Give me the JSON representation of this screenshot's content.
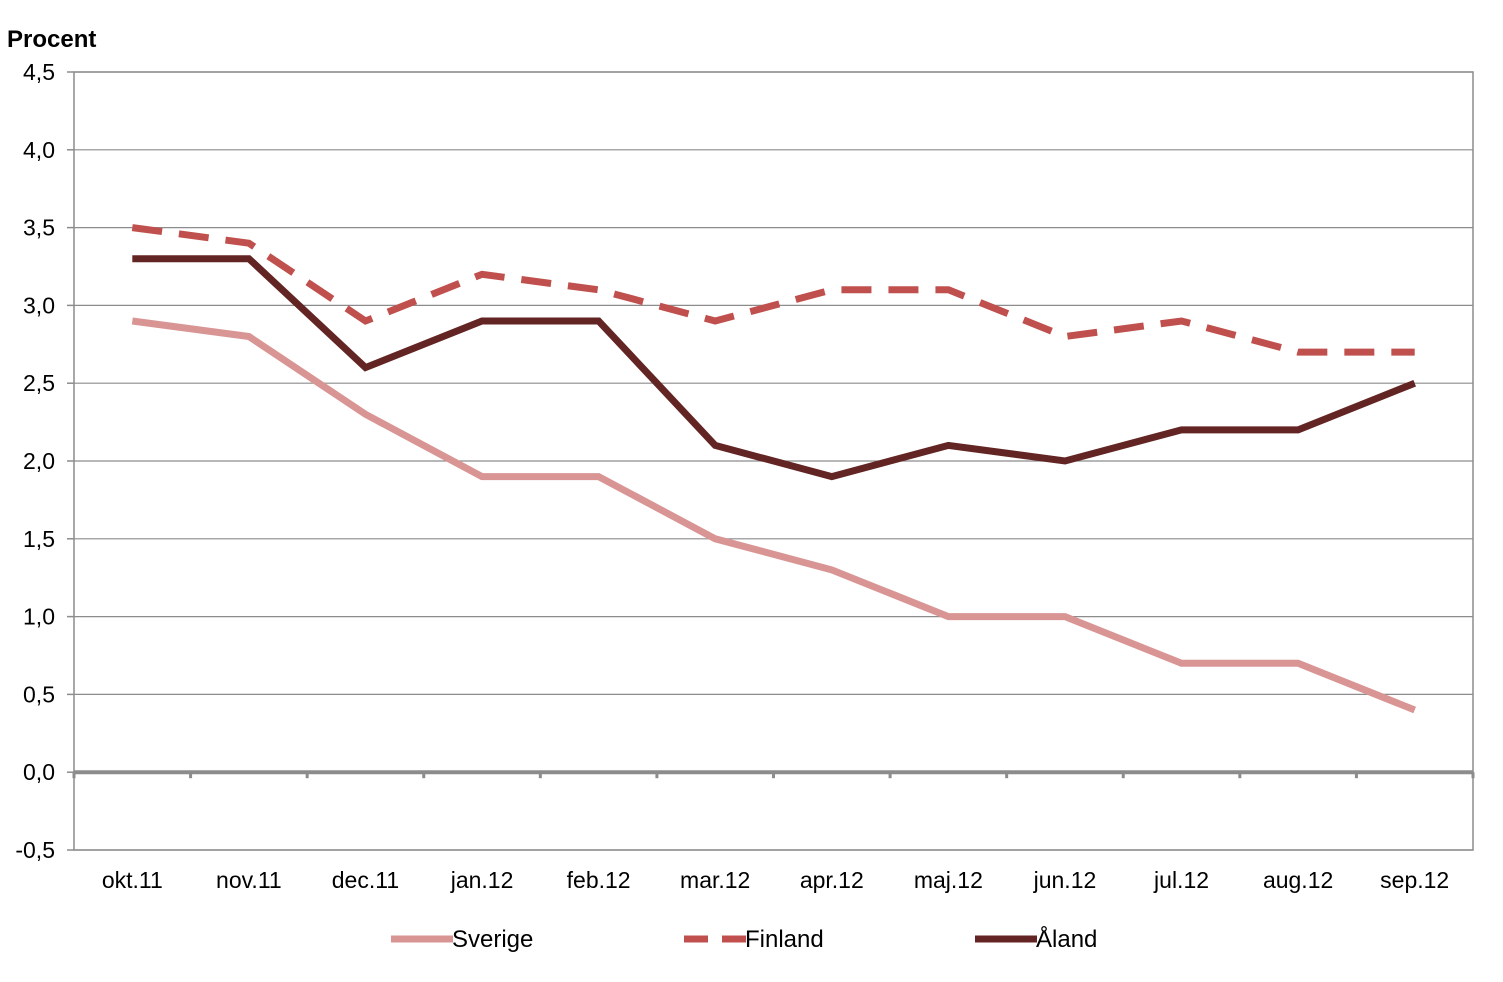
{
  "chart_data": {
    "type": "line",
    "title": "",
    "xlabel": "",
    "ylabel": "Procent",
    "categories": [
      "okt.11",
      "nov.11",
      "dec.11",
      "jan.12",
      "feb.12",
      "mar.12",
      "apr.12",
      "maj.12",
      "jun.12",
      "jul.12",
      "aug.12",
      "sep.12"
    ],
    "ylim": [
      -0.5,
      4.5
    ],
    "yticks": [
      -0.5,
      0.0,
      0.5,
      1.0,
      1.5,
      2.0,
      2.5,
      3.0,
      3.5,
      4.0,
      4.5
    ],
    "ytick_labels": [
      "-0,5",
      "0,0",
      "0,5",
      "1,0",
      "1,5",
      "2,0",
      "2,5",
      "3,0",
      "3,5",
      "4,0",
      "4,5"
    ],
    "grid": true,
    "legend_position": "bottom",
    "series": [
      {
        "name": "Sverige",
        "color": "#D99594",
        "style": "solid",
        "values": [
          2.9,
          2.8,
          2.3,
          1.9,
          1.9,
          1.5,
          1.3,
          1.0,
          1.0,
          0.7,
          0.7,
          0.4
        ]
      },
      {
        "name": "Finland",
        "color": "#C0504D",
        "style": "dashed",
        "values": [
          3.5,
          3.4,
          2.9,
          3.2,
          3.1,
          2.9,
          3.1,
          3.1,
          2.8,
          2.9,
          2.7,
          2.7
        ]
      },
      {
        "name": "Åland",
        "color": "#632523",
        "style": "solid",
        "values": [
          3.3,
          3.3,
          2.6,
          2.9,
          2.9,
          2.1,
          1.9,
          2.1,
          2.0,
          2.2,
          2.2,
          2.5
        ]
      }
    ]
  }
}
